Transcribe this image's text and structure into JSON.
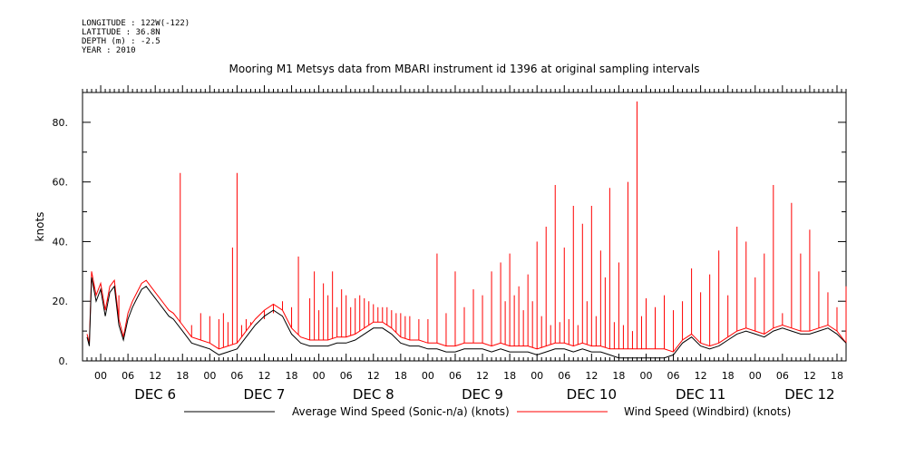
{
  "header": {
    "longitude": "LONGITUDE : 122W(-122)",
    "latitude": "LATITUDE : 36.8N",
    "depth": "DEPTH (m) : -2.5",
    "year": "YEAR : 2010"
  },
  "chart_data": {
    "type": "line",
    "title": "Mooring M1 Metsys data from MBARI instrument id 1396 at original sampling intervals",
    "ylabel": "knots",
    "xlabel": "",
    "ylim": [
      0,
      90
    ],
    "yticks": [
      0,
      20,
      40,
      60,
      80
    ],
    "ytick_labels": [
      "0.",
      "20.",
      "40.",
      "60.",
      "80."
    ],
    "xlim_hours": [
      -4,
      164
    ],
    "hour_ticks": [
      0,
      6,
      12,
      18,
      24,
      30,
      36,
      42,
      48,
      54,
      60,
      66,
      72,
      78,
      84,
      90,
      96,
      102,
      108,
      114,
      120,
      126,
      132,
      138,
      144,
      150,
      156,
      162
    ],
    "hour_labels": [
      "00",
      "06",
      "12",
      "18",
      "00",
      "06",
      "12",
      "18",
      "00",
      "06",
      "12",
      "18",
      "00",
      "06",
      "12",
      "18",
      "00",
      "06",
      "12",
      "18",
      "00",
      "06",
      "12",
      "18",
      "00",
      "06",
      "12",
      "18"
    ],
    "day_labels": [
      {
        "label": "DEC  6",
        "hour": 12
      },
      {
        "label": "DEC  7",
        "hour": 36
      },
      {
        "label": "DEC  8",
        "hour": 60
      },
      {
        "label": "DEC  9",
        "hour": 84
      },
      {
        "label": "DEC 10",
        "hour": 108
      },
      {
        "label": "DEC 11",
        "hour": 132
      },
      {
        "label": "DEC 12",
        "hour": 156
      }
    ],
    "legend": [
      {
        "name": "Average Wind Speed (Sonic-n/a) (knots)",
        "color": "#000000"
      },
      {
        "name": "Wind Speed (Windbird) (knots)",
        "color": "#ff0000"
      }
    ],
    "series": [
      {
        "name": "Average Wind Speed (Sonic-n/a) (knots)",
        "color": "#000000",
        "x": [
          -3,
          -2.5,
          -2,
          -1,
          0,
          1,
          2,
          3,
          4,
          5,
          6,
          7,
          8,
          9,
          10,
          11,
          12,
          13,
          14,
          15,
          16,
          18,
          20,
          22,
          24,
          26,
          28,
          30,
          32,
          34,
          36,
          38,
          40,
          42,
          44,
          46,
          48,
          50,
          52,
          54,
          56,
          58,
          60,
          62,
          64,
          66,
          68,
          70,
          72,
          74,
          76,
          78,
          80,
          82,
          84,
          86,
          88,
          90,
          92,
          94,
          96,
          98,
          100,
          102,
          104,
          106,
          108,
          110,
          112,
          114,
          116,
          118,
          120,
          122,
          124,
          126,
          128,
          130,
          132,
          134,
          136,
          138,
          140,
          142,
          144,
          146,
          148,
          150,
          152,
          154,
          156,
          158,
          160,
          162,
          164
        ],
        "y": [
          8,
          5,
          28,
          20,
          24,
          15,
          23,
          25,
          12,
          7,
          14,
          18,
          21,
          24,
          25,
          23,
          21,
          19,
          17,
          15,
          14,
          10,
          6,
          5,
          4,
          2,
          3,
          4,
          8,
          12,
          15,
          17,
          15,
          9,
          6,
          5,
          5,
          5,
          6,
          6,
          7,
          9,
          11,
          11,
          9,
          6,
          5,
          5,
          4,
          4,
          3,
          3,
          4,
          4,
          4,
          3,
          4,
          3,
          3,
          3,
          2,
          3,
          4,
          4,
          3,
          4,
          3,
          3,
          2,
          1,
          1,
          1,
          1,
          1,
          1,
          2,
          6,
          8,
          5,
          4,
          5,
          7,
          9,
          10,
          9,
          8,
          10,
          11,
          10,
          9,
          9,
          10,
          11,
          9,
          6
        ]
      },
      {
        "name": "Wind Speed (Windbird) (knots)",
        "color": "#ff0000",
        "x": [
          -3,
          -2.5,
          -2,
          -1,
          0,
          1,
          2,
          3,
          4,
          5,
          6,
          7,
          8,
          9,
          10,
          11,
          12,
          13,
          14,
          15,
          16,
          18,
          20,
          22,
          24,
          26,
          28,
          30,
          32,
          34,
          36,
          38,
          40,
          42,
          44,
          46,
          48,
          50,
          52,
          54,
          56,
          58,
          60,
          62,
          64,
          66,
          68,
          70,
          72,
          74,
          76,
          78,
          80,
          82,
          84,
          86,
          88,
          90,
          92,
          94,
          96,
          98,
          100,
          102,
          104,
          106,
          108,
          110,
          112,
          114,
          116,
          118,
          120,
          122,
          124,
          126,
          128,
          130,
          132,
          134,
          136,
          138,
          140,
          142,
          144,
          146,
          148,
          150,
          152,
          154,
          156,
          158,
          160,
          162,
          164
        ],
        "y": [
          9,
          6,
          30,
          22,
          26,
          17,
          25,
          27,
          14,
          8,
          16,
          20,
          23,
          26,
          27,
          25,
          23,
          21,
          19,
          17,
          16,
          12,
          8,
          7,
          6,
          4,
          5,
          6,
          10,
          14,
          17,
          19,
          17,
          11,
          8,
          7,
          7,
          7,
          8,
          8,
          9,
          11,
          13,
          13,
          11,
          8,
          7,
          7,
          6,
          6,
          5,
          5,
          6,
          6,
          6,
          5,
          6,
          5,
          5,
          5,
          4,
          5,
          6,
          6,
          5,
          6,
          5,
          5,
          4,
          4,
          4,
          4,
          4,
          4,
          4,
          3,
          7,
          9,
          6,
          5,
          6,
          8,
          10,
          11,
          10,
          9,
          11,
          12,
          11,
          10,
          10,
          11,
          12,
          10,
          6
        ]
      }
    ],
    "spikes": {
      "series": "Wind Speed (Windbird) (knots)",
      "hours": [
        -1.5,
        1.5,
        4,
        17.5,
        20,
        22,
        24,
        26,
        27,
        28,
        29,
        30,
        31,
        32,
        33,
        36,
        38,
        40,
        42,
        43.5,
        46,
        47,
        48,
        49,
        50,
        51,
        52,
        53,
        54,
        55,
        56,
        57,
        58,
        59,
        60,
        61,
        62,
        63,
        64,
        65,
        66,
        67,
        68,
        70,
        72,
        74,
        76,
        78,
        80,
        82,
        84,
        86,
        88,
        90,
        92,
        94,
        96,
        98,
        100,
        102,
        104,
        106,
        108,
        110,
        112,
        114,
        116,
        118,
        120,
        122,
        124,
        126,
        128,
        130,
        132,
        134,
        136,
        138,
        140,
        142,
        144,
        146,
        148,
        150,
        152,
        154,
        156,
        158,
        160,
        162,
        164,
        89,
        91,
        93,
        95,
        97,
        99,
        101,
        103,
        105,
        107,
        109,
        111,
        113,
        115,
        117,
        119
      ],
      "peaks": [
        24,
        20,
        22,
        63,
        12,
        16,
        15,
        14,
        16,
        13,
        38,
        63,
        12,
        14,
        13,
        14,
        16,
        20,
        18,
        35,
        21,
        30,
        17,
        26,
        22,
        30,
        18,
        24,
        22,
        18,
        21,
        22,
        21,
        20,
        19,
        18,
        18,
        18,
        17,
        16,
        16,
        15,
        15,
        14,
        14,
        36,
        16,
        30,
        18,
        24,
        22,
        30,
        33,
        36,
        25,
        29,
        40,
        45,
        59,
        38,
        52,
        46,
        52,
        37,
        58,
        33,
        60,
        87,
        21,
        18,
        22,
        17,
        20,
        31,
        23,
        29,
        37,
        22,
        45,
        40,
        28,
        36,
        59,
        16,
        53,
        36,
        44,
        30,
        23,
        18,
        25,
        20,
        22,
        17,
        20,
        15,
        12,
        13,
        14,
        12,
        20,
        15,
        28,
        13,
        12,
        10,
        15
      ]
    }
  }
}
